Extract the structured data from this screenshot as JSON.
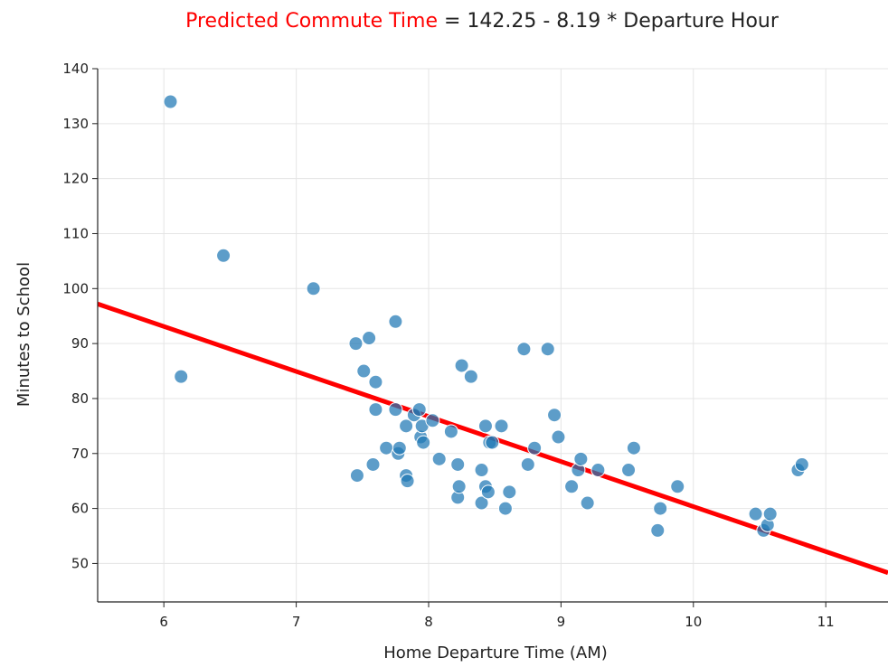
{
  "chart_data": {
    "type": "scatter",
    "title": {
      "highlight": "Predicted Commute Time",
      "rest": " = 142.25 - 8.19 * Departure Hour",
      "highlight_color": "#ff0000",
      "rest_color": "#222222"
    },
    "xlabel": "Home Departure Time (AM)",
    "ylabel": "Minutes to School",
    "xlim": [
      5.5,
      11.47
    ],
    "ylim": [
      43,
      140
    ],
    "xticks": [
      6,
      7,
      8,
      9,
      10,
      11
    ],
    "yticks": [
      50,
      60,
      70,
      80,
      90,
      100,
      110,
      120,
      130,
      140
    ],
    "grid": true,
    "point_color": "#1f77b4",
    "line_color": "#ff0000",
    "regression": {
      "intercept": 142.25,
      "slope": -8.19
    },
    "points": [
      [
        6.05,
        134
      ],
      [
        6.13,
        84
      ],
      [
        6.45,
        106
      ],
      [
        7.13,
        100
      ],
      [
        7.45,
        90
      ],
      [
        7.46,
        66
      ],
      [
        7.51,
        85
      ],
      [
        7.55,
        91
      ],
      [
        7.58,
        68
      ],
      [
        7.6,
        83
      ],
      [
        7.6,
        78
      ],
      [
        7.68,
        71
      ],
      [
        7.75,
        94
      ],
      [
        7.75,
        78
      ],
      [
        7.77,
        70
      ],
      [
        7.78,
        71
      ],
      [
        7.83,
        66
      ],
      [
        7.83,
        75
      ],
      [
        7.84,
        65
      ],
      [
        7.89,
        77
      ],
      [
        7.93,
        78
      ],
      [
        7.94,
        73
      ],
      [
        7.95,
        75
      ],
      [
        7.96,
        72
      ],
      [
        8.03,
        76
      ],
      [
        8.08,
        69
      ],
      [
        8.17,
        74
      ],
      [
        8.22,
        68
      ],
      [
        8.22,
        62
      ],
      [
        8.23,
        64
      ],
      [
        8.25,
        86
      ],
      [
        8.32,
        84
      ],
      [
        8.4,
        67
      ],
      [
        8.4,
        61
      ],
      [
        8.43,
        64
      ],
      [
        8.43,
        75
      ],
      [
        8.45,
        63
      ],
      [
        8.46,
        72
      ],
      [
        8.48,
        72
      ],
      [
        8.55,
        75
      ],
      [
        8.58,
        60
      ],
      [
        8.61,
        63
      ],
      [
        8.72,
        89
      ],
      [
        8.75,
        68
      ],
      [
        8.8,
        71
      ],
      [
        8.9,
        89
      ],
      [
        8.95,
        77
      ],
      [
        8.98,
        73
      ],
      [
        9.08,
        64
      ],
      [
        9.13,
        67
      ],
      [
        9.15,
        69
      ],
      [
        9.2,
        61
      ],
      [
        9.28,
        67
      ],
      [
        9.51,
        67
      ],
      [
        9.55,
        71
      ],
      [
        9.73,
        56
      ],
      [
        9.75,
        60
      ],
      [
        9.88,
        64
      ],
      [
        10.47,
        59
      ],
      [
        10.53,
        56
      ],
      [
        10.56,
        57
      ],
      [
        10.58,
        59
      ],
      [
        10.79,
        67
      ],
      [
        10.82,
        68
      ]
    ]
  }
}
